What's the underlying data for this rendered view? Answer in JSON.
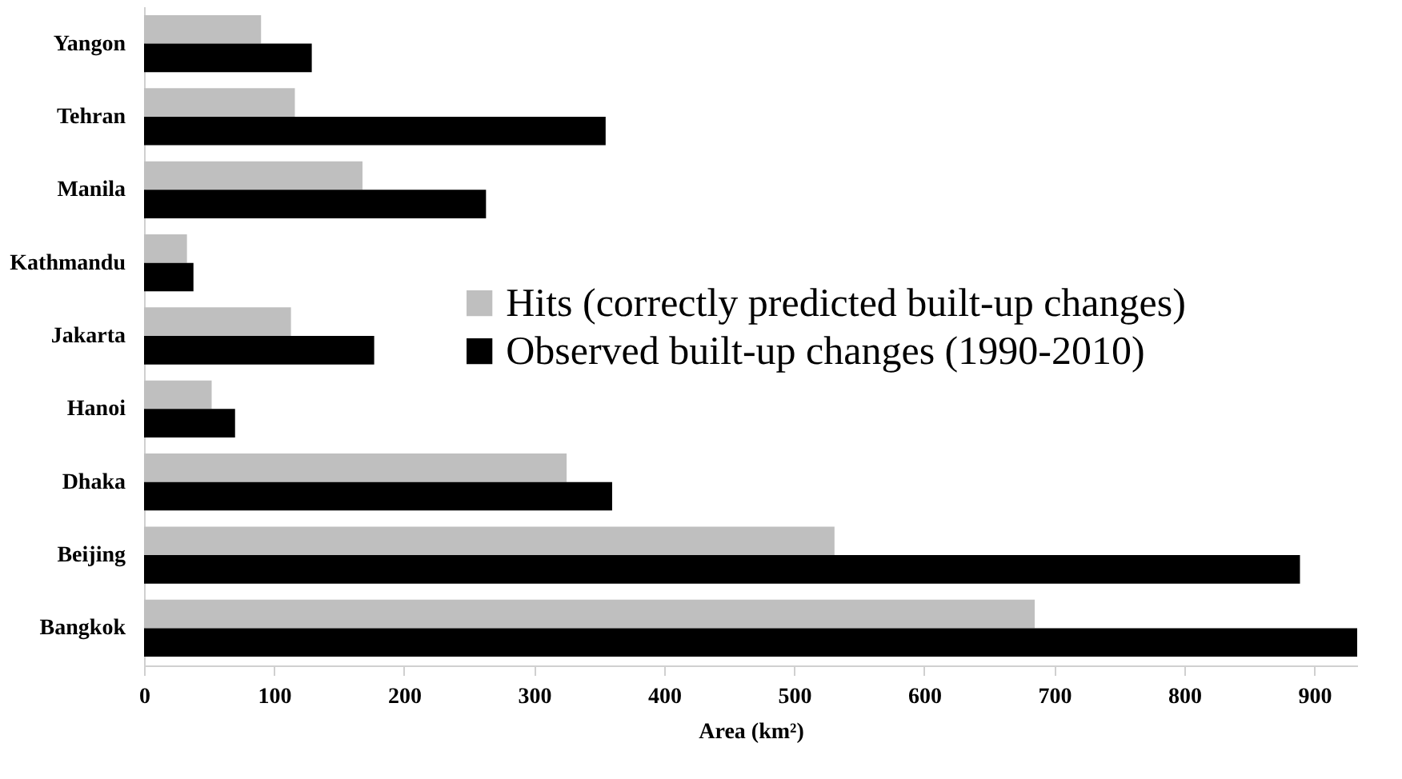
{
  "chart_data": {
    "type": "bar",
    "orientation": "horizontal",
    "xlabel": "Area (km²)",
    "categories": [
      "Yangon",
      "Tehran",
      "Manila",
      "Kathmandu",
      "Jakarta",
      "Hanoi",
      "Dhaka",
      "Beijing",
      "Bangkok"
    ],
    "series": [
      {
        "name": "Hits (correctly predicted built-up changes)",
        "color": "#bfbfbf",
        "values": [
          90,
          116,
          168,
          33,
          113,
          52,
          325,
          531,
          685
        ]
      },
      {
        "name": "Observed built-up changes (1990-2010)",
        "color": "#000000",
        "values": [
          129,
          355,
          263,
          38,
          177,
          70,
          360,
          889,
          933
        ]
      }
    ],
    "xlim": [
      0,
      933
    ],
    "xticks": [
      0,
      100,
      200,
      300,
      400,
      500,
      600,
      700,
      800,
      900
    ],
    "grid": false,
    "legend": "right"
  }
}
